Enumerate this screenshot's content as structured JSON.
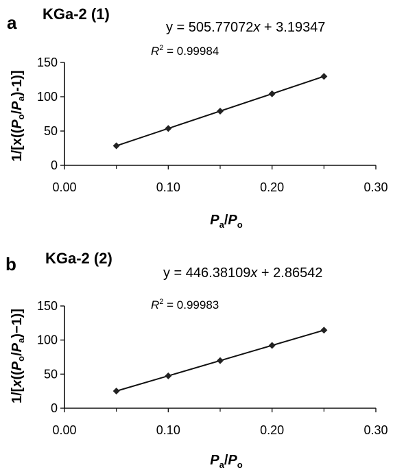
{
  "chart_data": [
    {
      "type": "scatter",
      "panel_label": "a",
      "title": "KGa-2 (1)",
      "equation": {
        "prefix": "y = 505.77072",
        "var": "x",
        "suffix": " + 3.19347"
      },
      "r2": {
        "base": "R",
        "sup": "2",
        "value": " = 0.99984"
      },
      "xlabel": {
        "p1": "P",
        "s1": "a",
        "slash": "/",
        "p2": "P",
        "s2": "o"
      },
      "ylabel": "1/[x((Po/Pa)-1)]",
      "xlim": [
        0,
        0.3
      ],
      "ylim": [
        0,
        150
      ],
      "xticks": [
        "0.00",
        "0.10",
        "0.20",
        "0.30"
      ],
      "xticks_minor": [
        0.05,
        0.15,
        0.25
      ],
      "yticks": [
        "0",
        "50",
        "100",
        "150"
      ],
      "x": [
        0.05,
        0.1,
        0.15,
        0.2,
        0.25
      ],
      "y": [
        28.5,
        53.8,
        79.0,
        104.3,
        129.6
      ],
      "trendline": {
        "slope": 505.77072,
        "intercept": 3.19347
      },
      "marker_color": "#222222",
      "line_color": "#111111"
    },
    {
      "type": "scatter",
      "panel_label": "b",
      "title": "KGa-2 (2)",
      "equation": {
        "prefix": "y = 446.38109",
        "var": "x",
        "suffix": " + 2.86542"
      },
      "r2": {
        "base": "R",
        "sup": "2",
        "value": " = 0.99983"
      },
      "xlabel": {
        "p1": "P",
        "s1": "a",
        "slash": "/",
        "p2": "P",
        "s2": "o"
      },
      "ylabel": "1/[x((Po/Pa)−1)]",
      "xlim": [
        0,
        0.3
      ],
      "ylim": [
        0,
        150
      ],
      "xticks": [
        "0.00",
        "0.10",
        "0.20",
        "0.30"
      ],
      "xticks_minor": [
        0.05,
        0.15,
        0.25
      ],
      "yticks": [
        "0",
        "50",
        "100",
        "150"
      ],
      "x": [
        0.05,
        0.1,
        0.15,
        0.2,
        0.25
      ],
      "y": [
        25.2,
        47.5,
        69.8,
        92.1,
        114.5
      ],
      "trendline": {
        "slope": 446.38109,
        "intercept": 2.86542
      },
      "marker_color": "#222222",
      "line_color": "#111111"
    }
  ]
}
